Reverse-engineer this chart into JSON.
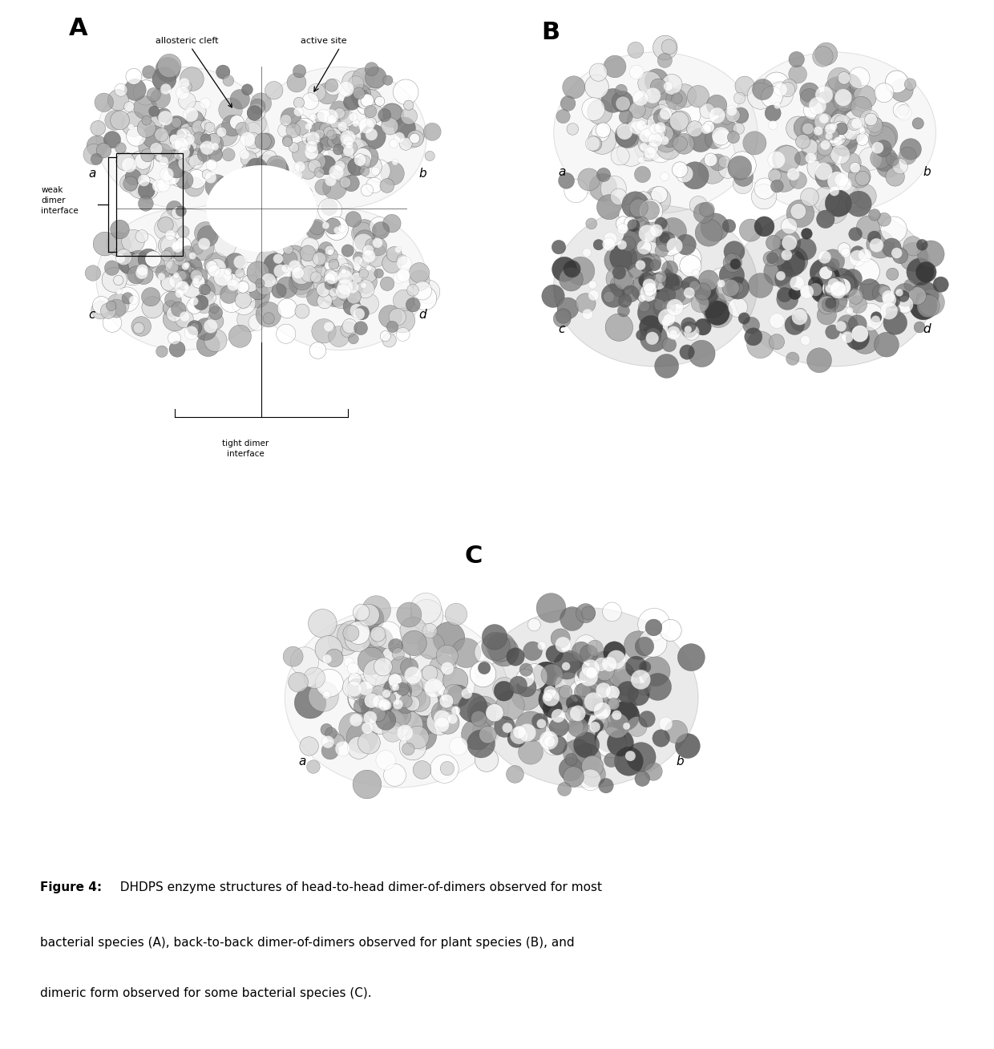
{
  "background_color": "#ffffff",
  "caption_bold": "Figure 4:",
  "caption_normal": "  DHDPS enzyme structures of head-to-head dimer-of-dimers observed for most bacterial species (A), back-to-back dimer-of-dimers observed for plant species (B), and dimeric form observed for some bacterial species (C).",
  "panel_A_label": "A",
  "panel_B_label": "B",
  "panel_C_label": "C",
  "panel_A_annotations": {
    "allosteric_cleft": "allosteric cleft",
    "active_site": "active site",
    "weak_dimer_interface": "weak\ndimer\ninterface",
    "tight_dimer_interface": "tight dimer\ninterface",
    "subunit_a": "a",
    "subunit_b": "b",
    "subunit_c": "c",
    "subunit_d": "d"
  },
  "panel_B_annotations": {
    "subunit_a": "a",
    "subunit_b": "b",
    "subunit_c": "c",
    "subunit_d": "d"
  },
  "panel_C_annotations": {
    "subunit_a": "a",
    "subunit_b": "b"
  },
  "fig_width": 12.4,
  "fig_height": 13.08,
  "dpi": 100
}
